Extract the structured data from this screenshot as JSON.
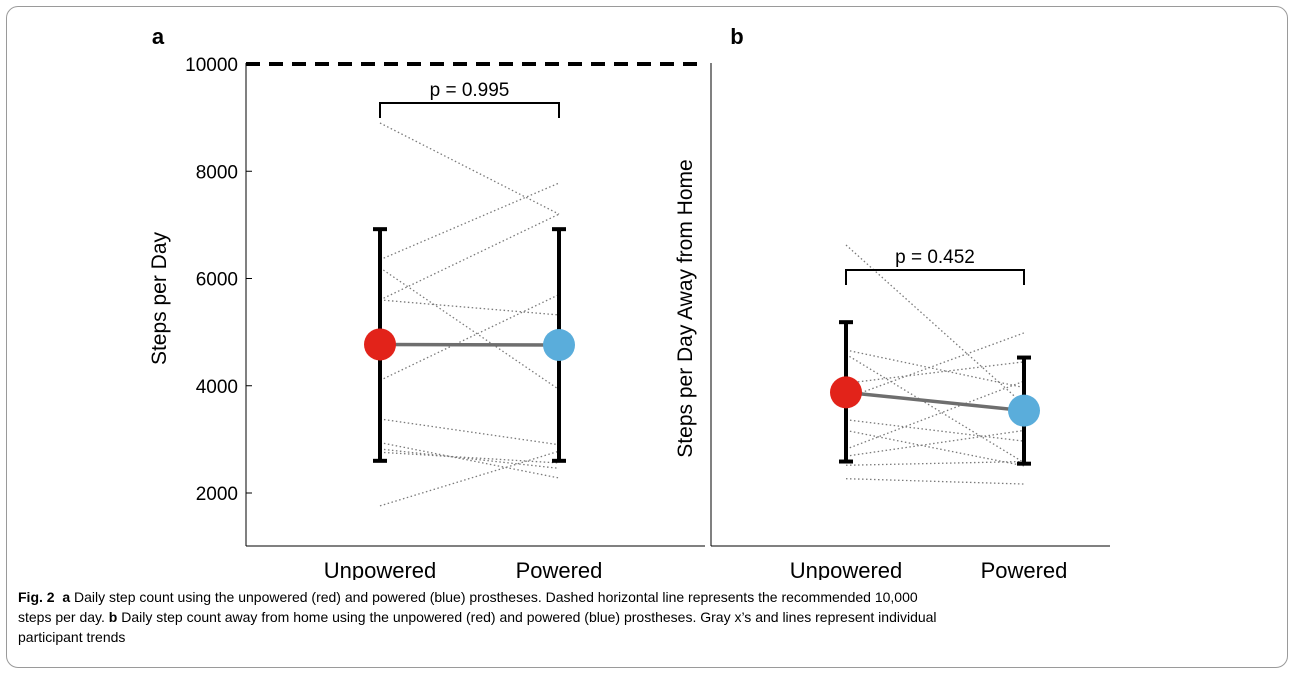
{
  "colors": {
    "unpowered": "#e2231a",
    "powered": "#5aaddb",
    "mean_line": "#6e6e6e",
    "trend": "#7a7a7a",
    "error_bar": "#000000"
  },
  "chart_data": [
    {
      "type": "scatter",
      "panel_label": "a",
      "categories": [
        "Unpowered",
        "Powered"
      ],
      "ylabel": "Steps per Day",
      "ylim": [
        1000,
        10000
      ],
      "yticks": [
        2000,
        4000,
        6000,
        8000,
        10000
      ],
      "tick_labels": [
        "2000",
        "4000",
        "6000",
        "8000",
        "10000"
      ],
      "reference_line": {
        "value": 10000,
        "style": "dashed"
      },
      "means": {
        "Unpowered": 4770,
        "Powered": 4760
      },
      "error_bars": {
        "Unpowered": [
          2600,
          6920
        ],
        "Powered": [
          2600,
          6920
        ]
      },
      "significance": {
        "text": "p = 0.995"
      },
      "participants": [
        [
          8900,
          7200
        ],
        [
          6350,
          7780
        ],
        [
          5600,
          7200
        ],
        [
          5600,
          5320
        ],
        [
          6200,
          3930
        ],
        [
          4100,
          5700
        ],
        [
          3380,
          2900
        ],
        [
          2940,
          2280
        ],
        [
          2820,
          2460
        ],
        [
          1760,
          2780
        ],
        [
          2760,
          2560
        ]
      ]
    },
    {
      "type": "scatter",
      "panel_label": "b",
      "categories": [
        "Unpowered",
        "Powered"
      ],
      "ylabel": "Steps per Day Away from Home",
      "ylim": [
        0,
        8000
      ],
      "means": {
        "Unpowered": 2810,
        "Powered": 2470
      },
      "error_bars": {
        "Unpowered": [
          1520,
          4120
        ],
        "Powered": [
          1480,
          3460
        ]
      },
      "significance": {
        "text": "p = 0.452"
      },
      "participants": [
        [
          5560,
          2580
        ],
        [
          3600,
          2900
        ],
        [
          3520,
          1500
        ],
        [
          2980,
          3380
        ],
        [
          2700,
          3920
        ],
        [
          2300,
          1900
        ],
        [
          2100,
          1440
        ],
        [
          1750,
          3020
        ],
        [
          1620,
          2100
        ],
        [
          1450,
          1520
        ],
        [
          1200,
          1100
        ]
      ]
    }
  ],
  "caption": {
    "fig_label": "Fig. 2",
    "a_label": "a",
    "a_text": "Daily step count using the unpowered (red) and powered (blue) prostheses. Dashed horizontal line represents the recommended 10,000",
    "line2_start": "steps per day.",
    "b_label": "b",
    "b_text": "Daily step count away from home using the unpowered (red) and powered (blue) prostheses. Gray x’s and lines represent individual",
    "line3": "participant trends"
  }
}
